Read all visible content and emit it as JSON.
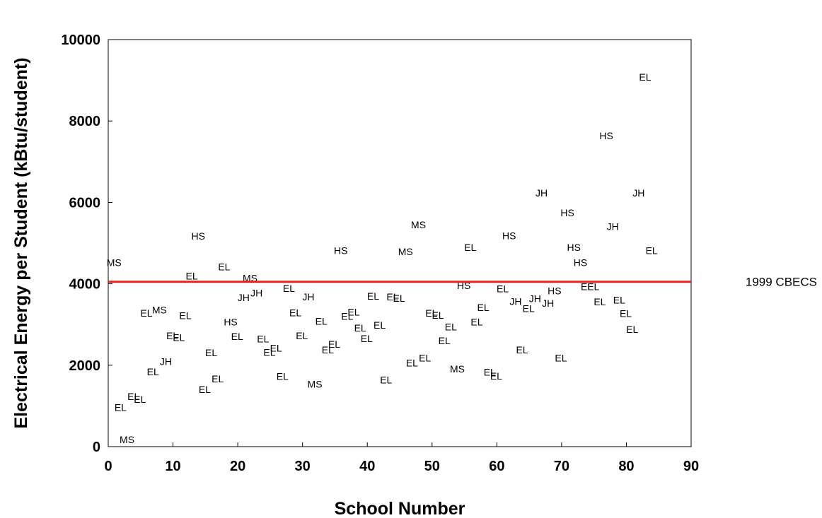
{
  "chart_data": {
    "type": "scatter",
    "title": "",
    "xlabel": "School Number",
    "ylabel": "Electrical Energy per Student (kBtu/student)",
    "xlim": [
      0,
      90
    ],
    "ylim": [
      0,
      10000
    ],
    "xticks": [
      0,
      10,
      20,
      30,
      40,
      50,
      60,
      70,
      80,
      90
    ],
    "yticks": [
      0,
      2000,
      4000,
      6000,
      8000,
      10000
    ],
    "grid": false,
    "marker": "text label (school type)",
    "points": [
      {
        "x": 0.9,
        "y": 4520,
        "label": "MS"
      },
      {
        "x": 1.9,
        "y": 960,
        "label": "EL"
      },
      {
        "x": 2.9,
        "y": 170,
        "label": "MS"
      },
      {
        "x": 3.9,
        "y": 1230,
        "label": "EL"
      },
      {
        "x": 4.9,
        "y": 1160,
        "label": "EL"
      },
      {
        "x": 5.9,
        "y": 3280,
        "label": "EL"
      },
      {
        "x": 6.9,
        "y": 1840,
        "label": "EL"
      },
      {
        "x": 7.9,
        "y": 3360,
        "label": "MS"
      },
      {
        "x": 8.9,
        "y": 2090,
        "label": "JH"
      },
      {
        "x": 9.9,
        "y": 2730,
        "label": "EL"
      },
      {
        "x": 10.9,
        "y": 2680,
        "label": "EL"
      },
      {
        "x": 11.9,
        "y": 3220,
        "label": "EL"
      },
      {
        "x": 12.9,
        "y": 4190,
        "label": "EL"
      },
      {
        "x": 13.9,
        "y": 5170,
        "label": "HS"
      },
      {
        "x": 14.9,
        "y": 1410,
        "label": "EL"
      },
      {
        "x": 15.9,
        "y": 2310,
        "label": "EL"
      },
      {
        "x": 16.9,
        "y": 1670,
        "label": "EL"
      },
      {
        "x": 17.9,
        "y": 4420,
        "label": "EL"
      },
      {
        "x": 18.9,
        "y": 3060,
        "label": "HS"
      },
      {
        "x": 19.9,
        "y": 2710,
        "label": "EL"
      },
      {
        "x": 20.9,
        "y": 3660,
        "label": "JH"
      },
      {
        "x": 21.9,
        "y": 4140,
        "label": "MS"
      },
      {
        "x": 22.9,
        "y": 3780,
        "label": "JH"
      },
      {
        "x": 23.9,
        "y": 2650,
        "label": "EL"
      },
      {
        "x": 24.9,
        "y": 2320,
        "label": "EL"
      },
      {
        "x": 25.9,
        "y": 2420,
        "label": "EL"
      },
      {
        "x": 26.9,
        "y": 1730,
        "label": "EL"
      },
      {
        "x": 27.9,
        "y": 3890,
        "label": "EL"
      },
      {
        "x": 28.9,
        "y": 3290,
        "label": "EL"
      },
      {
        "x": 29.9,
        "y": 2730,
        "label": "EL"
      },
      {
        "x": 30.9,
        "y": 3680,
        "label": "JH"
      },
      {
        "x": 31.9,
        "y": 1540,
        "label": "MS"
      },
      {
        "x": 32.9,
        "y": 3080,
        "label": "EL"
      },
      {
        "x": 33.9,
        "y": 2380,
        "label": "EL"
      },
      {
        "x": 34.9,
        "y": 2520,
        "label": "EL"
      },
      {
        "x": 35.9,
        "y": 4820,
        "label": "HS"
      },
      {
        "x": 36.9,
        "y": 3200,
        "label": "EL"
      },
      {
        "x": 37.9,
        "y": 3310,
        "label": "EL"
      },
      {
        "x": 38.9,
        "y": 2920,
        "label": "EL"
      },
      {
        "x": 39.9,
        "y": 2660,
        "label": "EL"
      },
      {
        "x": 40.9,
        "y": 3700,
        "label": "EL"
      },
      {
        "x": 41.9,
        "y": 2990,
        "label": "EL"
      },
      {
        "x": 42.9,
        "y": 1640,
        "label": "EL"
      },
      {
        "x": 43.9,
        "y": 3680,
        "label": "EL"
      },
      {
        "x": 44.9,
        "y": 3650,
        "label": "EL"
      },
      {
        "x": 45.9,
        "y": 4790,
        "label": "MS"
      },
      {
        "x": 46.9,
        "y": 2060,
        "label": "EL"
      },
      {
        "x": 47.9,
        "y": 5450,
        "label": "MS"
      },
      {
        "x": 48.9,
        "y": 2180,
        "label": "EL"
      },
      {
        "x": 49.9,
        "y": 3280,
        "label": "EL"
      },
      {
        "x": 50.9,
        "y": 3230,
        "label": "EL"
      },
      {
        "x": 51.9,
        "y": 2600,
        "label": "EL"
      },
      {
        "x": 52.9,
        "y": 2940,
        "label": "EL"
      },
      {
        "x": 53.9,
        "y": 1910,
        "label": "MS"
      },
      {
        "x": 54.9,
        "y": 3960,
        "label": "HS"
      },
      {
        "x": 55.9,
        "y": 4900,
        "label": "EL"
      },
      {
        "x": 56.9,
        "y": 3060,
        "label": "EL"
      },
      {
        "x": 57.9,
        "y": 3420,
        "label": "EL"
      },
      {
        "x": 58.9,
        "y": 1830,
        "label": "EL"
      },
      {
        "x": 59.9,
        "y": 1740,
        "label": "EL"
      },
      {
        "x": 60.9,
        "y": 3880,
        "label": "EL"
      },
      {
        "x": 61.9,
        "y": 5180,
        "label": "HS"
      },
      {
        "x": 62.9,
        "y": 3570,
        "label": "JH"
      },
      {
        "x": 63.9,
        "y": 2380,
        "label": "EL"
      },
      {
        "x": 64.9,
        "y": 3390,
        "label": "EL"
      },
      {
        "x": 65.9,
        "y": 3640,
        "label": "JH"
      },
      {
        "x": 66.9,
        "y": 6230,
        "label": "JH"
      },
      {
        "x": 67.9,
        "y": 3520,
        "label": "JH"
      },
      {
        "x": 68.9,
        "y": 3830,
        "label": "HS"
      },
      {
        "x": 69.9,
        "y": 2180,
        "label": "EL"
      },
      {
        "x": 70.9,
        "y": 5750,
        "label": "HS"
      },
      {
        "x": 71.9,
        "y": 4900,
        "label": "HS"
      },
      {
        "x": 72.9,
        "y": 4520,
        "label": "HS"
      },
      {
        "x": 73.9,
        "y": 3930,
        "label": "EL"
      },
      {
        "x": 74.9,
        "y": 3930,
        "label": "EL"
      },
      {
        "x": 75.9,
        "y": 3560,
        "label": "EL"
      },
      {
        "x": 76.9,
        "y": 7640,
        "label": "HS"
      },
      {
        "x": 77.9,
        "y": 5410,
        "label": "JH"
      },
      {
        "x": 78.9,
        "y": 3600,
        "label": "EL"
      },
      {
        "x": 79.9,
        "y": 3270,
        "label": "EL"
      },
      {
        "x": 80.9,
        "y": 2880,
        "label": "EL"
      },
      {
        "x": 81.9,
        "y": 6230,
        "label": "JH"
      },
      {
        "x": 82.9,
        "y": 9080,
        "label": "EL"
      },
      {
        "x": 83.9,
        "y": 4820,
        "label": "EL"
      }
    ],
    "reference_lines": [
      {
        "y": 4050,
        "label": "1999 CBECS",
        "color": "#e8211c"
      }
    ],
    "colors": {
      "reference_line": "#e8211c",
      "text": "#000000",
      "axes": "#000000"
    }
  }
}
